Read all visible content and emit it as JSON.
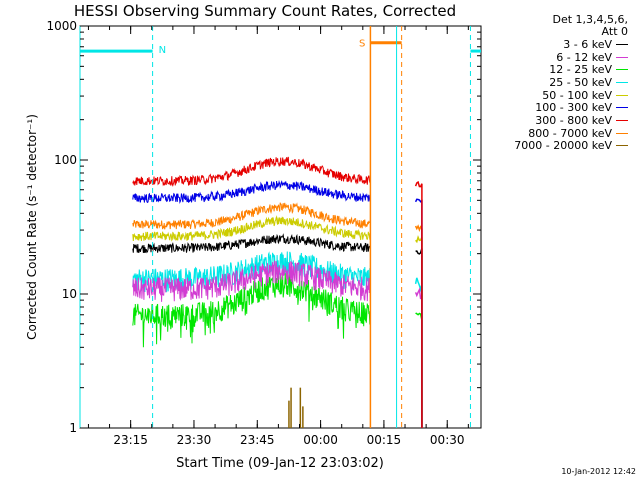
{
  "chart_data": {
    "type": "line",
    "title": "HESSI Observing Summary Count Rates, Corrected",
    "xlabel": "Start Time (09-Jan-12 23:03:02)",
    "ylabel": "Corrected Count Rate (s⁻¹ detector⁻¹)",
    "yscale": "log",
    "ylim": [
      1,
      1000
    ],
    "xlim_minutes": [
      0,
      95
    ],
    "x_ticks": [
      {
        "label": "23:15",
        "min": 12
      },
      {
        "label": "23:30",
        "min": 27
      },
      {
        "label": "23:45",
        "min": 42
      },
      {
        "label": "00:00",
        "min": 57
      },
      {
        "label": "00:15",
        "min": 72
      },
      {
        "label": "00:30",
        "min": 87
      }
    ],
    "y_ticks": [
      {
        "label": "1",
        "value": 1
      },
      {
        "label": "10",
        "value": 10
      },
      {
        "label": "100",
        "value": 100
      },
      {
        "label": "1000",
        "value": 1000
      }
    ],
    "legend_header": [
      "Det 1,3,4,5,6,",
      "Att 0"
    ],
    "series": [
      {
        "name": "3 - 6 keV",
        "color": "#000000",
        "base": 22,
        "hump": 1.18
      },
      {
        "name": "6 - 12 keV",
        "color": "#d23cd2",
        "base": 11,
        "hump": 1.35
      },
      {
        "name": "12 - 25 keV",
        "color": "#00e600",
        "base": 7,
        "hump": 1.7
      },
      {
        "name": "25 - 50 keV",
        "color": "#00e6e6",
        "base": 13,
        "hump": 1.35
      },
      {
        "name": "50 - 100 keV",
        "color": "#cccc00",
        "base": 27,
        "hump": 1.3
      },
      {
        "name": "100 - 300 keV",
        "color": "#0000e6",
        "base": 52,
        "hump": 1.25
      },
      {
        "name": "300 - 800 keV",
        "color": "#e60000",
        "base": 70,
        "hump": 1.4
      },
      {
        "name": "800 - 7000 keV",
        "color": "#ff8000",
        "base": 33,
        "hump": 1.35
      },
      {
        "name": "7000 - 20000 keV",
        "color": "#8c6400",
        "base": 1,
        "hump": 1.0
      }
    ],
    "data_start_min": 12.5,
    "data_end_min": 68.8,
    "hump_center_min": 48,
    "after_gap": {
      "start_min": 79.5,
      "end_min": 81
    },
    "annotations": {
      "night_label": "N",
      "saa_label": "S",
      "night_intervals": [
        [
          0,
          17.2
        ],
        [
          92.5,
          95
        ]
      ],
      "saa_interval": [
        68.8,
        76.2
      ]
    },
    "timestamp": "10-Jan-2012 12:42"
  }
}
